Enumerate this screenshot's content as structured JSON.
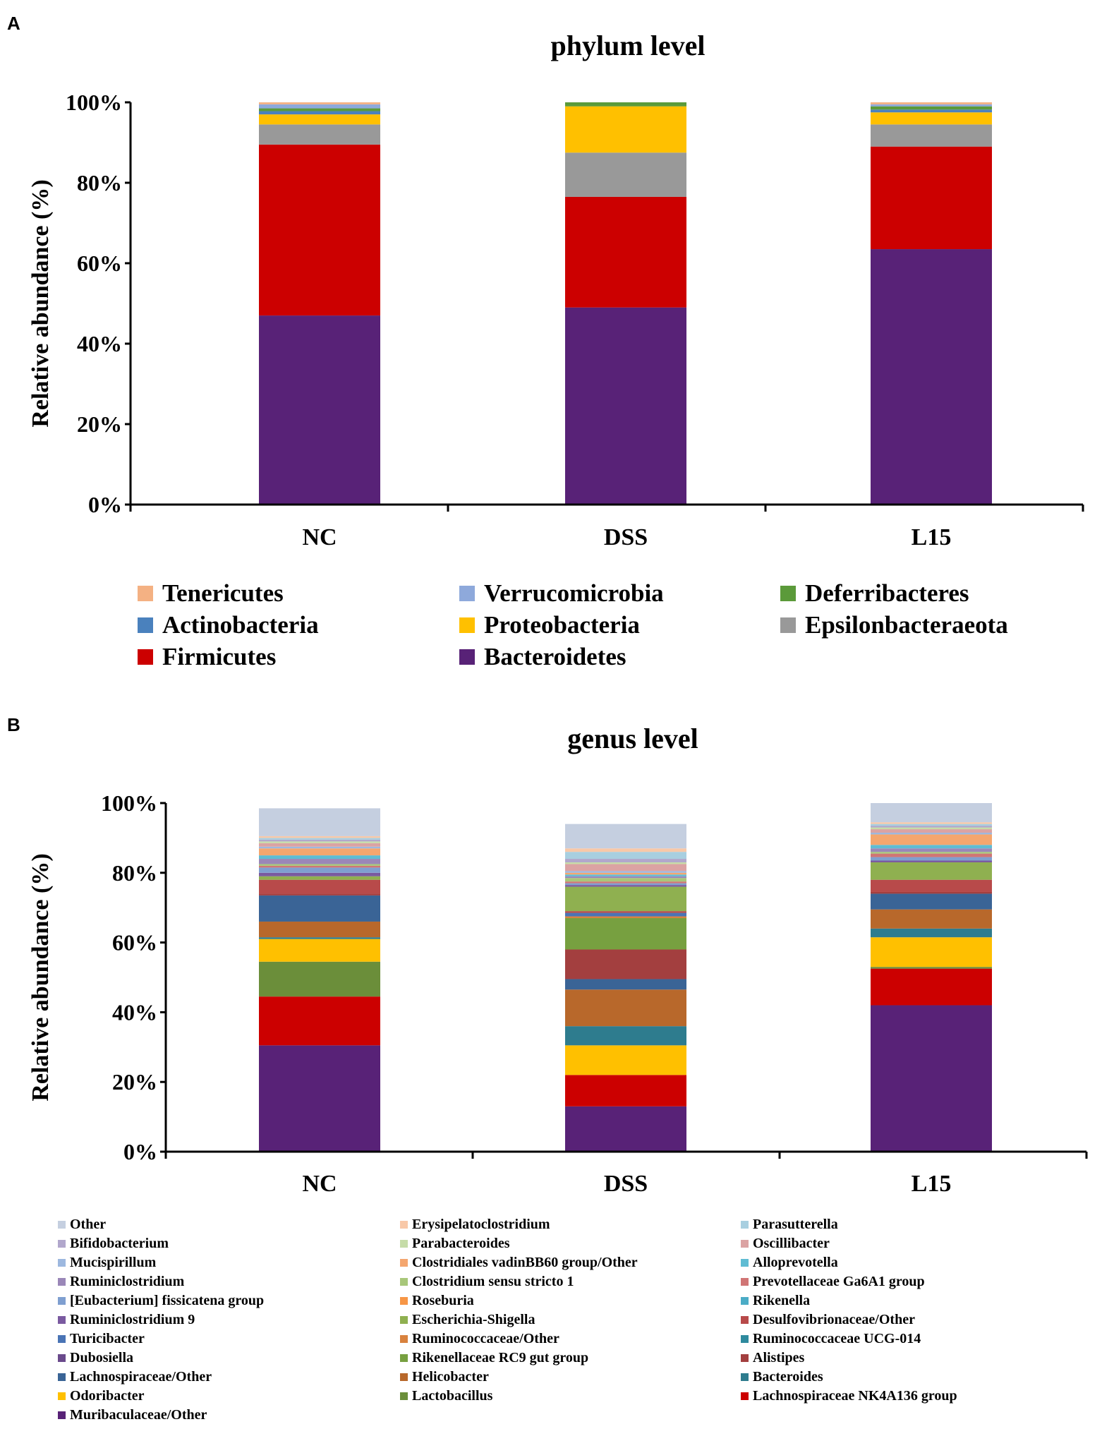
{
  "panels": {
    "a": "A",
    "b": "B"
  },
  "chart_data": [
    {
      "type": "bar",
      "stacked": true,
      "title": "phylum    level",
      "xlabel": "",
      "ylabel": "Relative abundance (%)",
      "ylim": [
        0,
        100
      ],
      "yticks": [
        "0%",
        "20%",
        "40%",
        "60%",
        "80%",
        "100%"
      ],
      "categories": [
        "NC",
        "DSS",
        "L15"
      ],
      "series": [
        {
          "name": "Bacteroidetes",
          "color": "#582277",
          "values": [
            47.0,
            49.0,
            63.5
          ]
        },
        {
          "name": "Firmicutes",
          "color": "#cc0000",
          "values": [
            42.5,
            27.5,
            25.5
          ]
        },
        {
          "name": "Epsilonbacteraeota",
          "color": "#999999",
          "values": [
            5.0,
            11.0,
            5.5
          ]
        },
        {
          "name": "Proteobacteria",
          "color": "#ffc000",
          "values": [
            2.5,
            11.5,
            3.0
          ]
        },
        {
          "name": "Actinobacteria",
          "color": "#4a81bd",
          "values": [
            0.8,
            0.0,
            0.7
          ]
        },
        {
          "name": "Deferribacteres",
          "color": "#5b9a3a",
          "values": [
            0.7,
            1.0,
            0.8
          ]
        },
        {
          "name": "Verrucomicrobia",
          "color": "#8ea9db",
          "values": [
            1.0,
            0.0,
            0.5
          ]
        },
        {
          "name": "Tenericutes",
          "color": "#f4b183",
          "values": [
            0.5,
            0.0,
            0.5
          ]
        }
      ],
      "legend": [
        "Tenericutes",
        "Verrucomicrobia",
        "Deferribacteres",
        "Actinobacteria",
        "Proteobacteria",
        "Epsilonbacteraeota",
        "Firmicutes",
        "Bacteroidetes"
      ]
    },
    {
      "type": "bar",
      "stacked": true,
      "title": "genus    level",
      "xlabel": "",
      "ylabel": "Relative abundance (%)",
      "ylim": [
        0,
        100
      ],
      "yticks": [
        "0%",
        "20%",
        "40%",
        "60%",
        "80%",
        "100%"
      ],
      "categories": [
        "NC",
        "DSS",
        "L15"
      ],
      "series": [
        {
          "name": "Muribaculaceae/Other",
          "color": "#582277",
          "values": [
            30.5,
            13.0,
            42.0
          ]
        },
        {
          "name": "Lachnospiraceae NK4A136 group",
          "color": "#cc0000",
          "values": [
            14.0,
            9.0,
            10.5
          ]
        },
        {
          "name": "Lactobacillus",
          "color": "#6b8e3a",
          "values": [
            10.0,
            0.0,
            0.5
          ]
        },
        {
          "name": "Odoribacter",
          "color": "#ffc000",
          "values": [
            6.5,
            8.5,
            8.5
          ]
        },
        {
          "name": "Bacteroides",
          "color": "#2e7c8e",
          "values": [
            0.5,
            5.5,
            2.5
          ]
        },
        {
          "name": "Helicobacter",
          "color": "#b8682b",
          "values": [
            4.5,
            10.5,
            5.5
          ]
        },
        {
          "name": "Lachnospiraceae/Other",
          "color": "#3a6496",
          "values": [
            7.5,
            3.0,
            4.5
          ]
        },
        {
          "name": "Alistipes",
          "color": "#a33f3f",
          "values": [
            0.5,
            8.5,
            0.5
          ]
        },
        {
          "name": "Rikenellaceae RC9 gut group",
          "color": "#77a040",
          "values": [
            0.0,
            9.0,
            0.0
          ]
        },
        {
          "name": "Dubosiella",
          "color": "#6a4a8c",
          "values": [
            0.0,
            0.0,
            0.0
          ]
        },
        {
          "name": "Ruminococcaceae UCG-014",
          "color": "#2e8a9e",
          "values": [
            0.0,
            0.0,
            0.0
          ]
        },
        {
          "name": "Ruminococcaceae/Other",
          "color": "#d9823e",
          "values": [
            0.0,
            0.5,
            0.0
          ]
        },
        {
          "name": "Turicibacter",
          "color": "#4a74b5",
          "values": [
            0.0,
            1.0,
            0.0
          ]
        },
        {
          "name": "Desulfovibrionaceae/Other",
          "color": "#b84a4a",
          "values": [
            4.0,
            0.5,
            3.5
          ]
        },
        {
          "name": "Escherichia-Shigella",
          "color": "#8fb050",
          "values": [
            1.0,
            7.0,
            5.0
          ]
        },
        {
          "name": "Ruminiclostridium 9",
          "color": "#7a5aa0",
          "values": [
            1.0,
            0.5,
            0.5
          ]
        },
        {
          "name": "Rikenella",
          "color": "#4bacc6",
          "values": [
            0.0,
            0.0,
            0.0
          ]
        },
        {
          "name": "Roseburia",
          "color": "#f79646",
          "values": [
            0.0,
            0.0,
            0.0
          ]
        },
        {
          "name": "[Eubacterium] fissicatena group",
          "color": "#7f9fd0",
          "values": [
            1.5,
            0.5,
            1.0
          ]
        },
        {
          "name": "Prevotellaceae Ga6A1 group",
          "color": "#d07575",
          "values": [
            0.5,
            0.5,
            1.0
          ]
        },
        {
          "name": "Clostridium sensu stricto 1",
          "color": "#a8c77a",
          "values": [
            0.5,
            1.0,
            0.5
          ]
        },
        {
          "name": "Ruminiclostridium",
          "color": "#9a87b8",
          "values": [
            1.5,
            0.5,
            1.0
          ]
        },
        {
          "name": "Alloprevotella",
          "color": "#5fbcd3",
          "values": [
            1.0,
            0.5,
            1.0
          ]
        },
        {
          "name": "Clostridiales vadinBB60 group/Other",
          "color": "#f4a66e",
          "values": [
            2.0,
            0.5,
            3.0
          ]
        },
        {
          "name": "Mucispirillum",
          "color": "#9db8df",
          "values": [
            0.5,
            0.5,
            0.5
          ]
        },
        {
          "name": "Oscillibacter",
          "color": "#dba3a3",
          "values": [
            1.0,
            2.0,
            1.0
          ]
        },
        {
          "name": "Parabacteroides",
          "color": "#c6dca8",
          "values": [
            0.5,
            0.5,
            0.5
          ]
        },
        {
          "name": "Bifidobacterium",
          "color": "#b1a7cc",
          "values": [
            0.5,
            1.0,
            0.5
          ]
        },
        {
          "name": "Parasutterella",
          "color": "#a8cfe0",
          "values": [
            0.5,
            2.0,
            0.5
          ]
        },
        {
          "name": "Erysipelatoclostridium",
          "color": "#f8c8a8",
          "values": [
            0.5,
            1.0,
            0.5
          ]
        },
        {
          "name": "Other",
          "color": "#c5cfe0",
          "values": [
            8.0,
            7.0,
            5.5
          ]
        }
      ],
      "legend": [
        "Other",
        "Erysipelatoclostridium",
        "Parasutterella",
        "Bifidobacterium",
        "Parabacteroides",
        "Oscillibacter",
        "Mucispirillum",
        "Clostridiales vadinBB60 group/Other",
        "Alloprevotella",
        "Ruminiclostridium",
        "Clostridium sensu stricto 1",
        "Prevotellaceae Ga6A1 group",
        "[Eubacterium] fissicatena group",
        "Roseburia",
        "Rikenella",
        "Ruminiclostridium 9",
        "Escherichia-Shigella",
        "Desulfovibrionaceae/Other",
        "Turicibacter",
        "Ruminococcaceae/Other",
        "Ruminococcaceae UCG-014",
        "Dubosiella",
        "Rikenellaceae RC9 gut group",
        "Alistipes",
        "Lachnospiraceae/Other",
        "Helicobacter",
        "Bacteroides",
        "Odoribacter",
        "Lactobacillus",
        "Lachnospiraceae NK4A136 group",
        "Muribaculaceae/Other"
      ]
    }
  ]
}
